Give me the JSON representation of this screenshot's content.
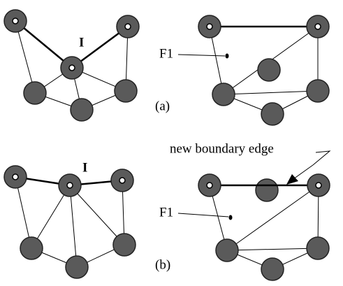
{
  "panel_a": {
    "vertex_label": "I",
    "face_label": "F1",
    "caption": "(a)"
  },
  "panel_b": {
    "vertex_label": "I",
    "face_label": "F1",
    "caption": "(b)",
    "annotation": "new boundary edge"
  }
}
